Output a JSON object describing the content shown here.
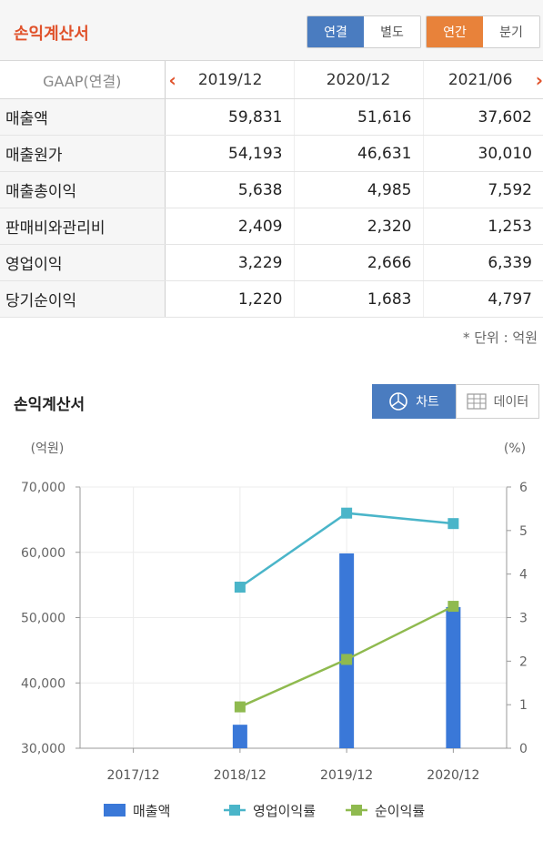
{
  "header": {
    "title": "손익계산서",
    "consolidation_toggle": [
      "연결",
      "별도"
    ],
    "period_toggle": [
      "연간",
      "분기"
    ]
  },
  "table": {
    "gaap_label": "GAAP(연결)",
    "prev_arrow": "‹",
    "next_arrow": "›",
    "columns": [
      "2019/12",
      "2020/12",
      "2021/06"
    ],
    "rows": [
      {
        "label": "매출액",
        "values": [
          "59,831",
          "51,616",
          "37,602"
        ]
      },
      {
        "label": "매출원가",
        "values": [
          "54,193",
          "46,631",
          "30,010"
        ]
      },
      {
        "label": "매출총이익",
        "values": [
          "5,638",
          "4,985",
          "7,592"
        ]
      },
      {
        "label": "판매비와관리비",
        "values": [
          "2,409",
          "2,320",
          "1,253"
        ]
      },
      {
        "label": "영업이익",
        "values": [
          "3,229",
          "2,666",
          "6,339"
        ]
      },
      {
        "label": "당기순이익",
        "values": [
          "1,220",
          "1,683",
          "4,797"
        ]
      }
    ],
    "unit_note": "* 단위 : 억원"
  },
  "chart_section": {
    "title": "손익계산서",
    "chart_button": "차트",
    "data_button": "데이터"
  },
  "colors": {
    "bar": "#3a78d8",
    "op_margin": "#4ab5c9",
    "net_margin": "#8fba4f",
    "accent": "#e0522b"
  },
  "chart_data": {
    "type": "bar",
    "categories": [
      "2017/12",
      "2018/12",
      "2019/12",
      "2020/12"
    ],
    "left_axis_label": "(억원)",
    "right_axis_label": "(%)",
    "left_ylim": [
      30000,
      70000
    ],
    "left_ticks": [
      "30,000",
      "40,000",
      "50,000",
      "60,000",
      "70,000"
    ],
    "right_ylim": [
      0,
      6
    ],
    "right_ticks": [
      "0",
      "1",
      "2",
      "3",
      "4",
      "5",
      "6"
    ],
    "series": [
      {
        "name": "매출액",
        "type": "bar",
        "axis": "left",
        "values": [
          null,
          33600,
          59831,
          51616
        ]
      },
      {
        "name": "영업이익률",
        "type": "line",
        "axis": "right",
        "values": [
          null,
          3.7,
          5.4,
          5.16
        ]
      },
      {
        "name": "순이익률",
        "type": "line",
        "axis": "right",
        "values": [
          null,
          0.95,
          2.04,
          3.26
        ]
      }
    ],
    "legend_position": "bottom",
    "grid": true
  }
}
